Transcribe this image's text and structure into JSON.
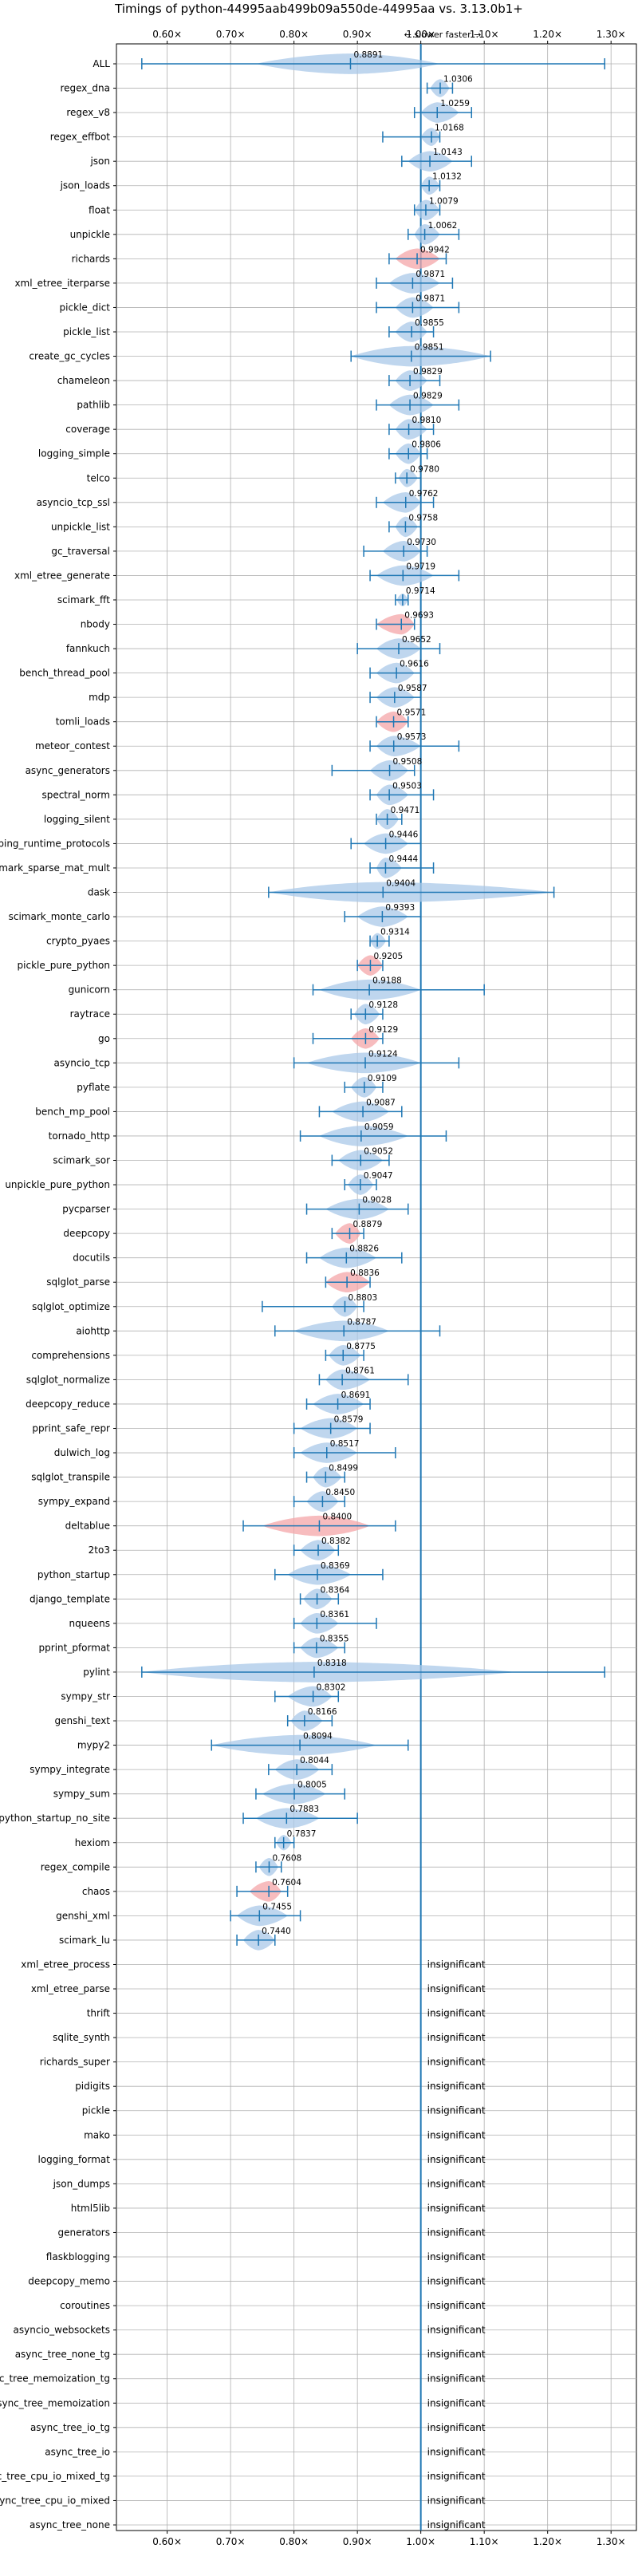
{
  "chart_data": {
    "type": "violin",
    "title": "Timings of python-44995aab499b09a550de-44995aa vs. 3.13.0b1+",
    "subtitle": "← slower     faster →",
    "xlim": [
      0.52,
      1.34
    ],
    "xticks": [
      0.6,
      0.7,
      0.8,
      0.9,
      1.0,
      1.1,
      1.2,
      1.3
    ],
    "xtick_labels": [
      "0.60×",
      "0.70×",
      "0.80×",
      "0.90×",
      "1.00×",
      "1.10×",
      "1.20×",
      "1.30×"
    ],
    "grid": true,
    "colors": {
      "faster": "#1f77b4",
      "faster_fill": "#a9c8e8",
      "slower_fill": "#f4a6a8",
      "axis": "#000000"
    },
    "insignificant_label": "insignificant",
    "benchmarks": [
      {
        "name": "ALL",
        "mean": 0.8891,
        "label": "0.8891",
        "lo": 0.56,
        "hi": 1.29,
        "vlo": 0.74,
        "vhi": 1.03,
        "slower": false
      },
      {
        "name": "regex_dna",
        "mean": 1.0306,
        "label": "1.0306",
        "lo": 1.01,
        "hi": 1.05,
        "vlo": 1.015,
        "vhi": 1.045,
        "slower": false
      },
      {
        "name": "regex_v8",
        "mean": 1.0259,
        "label": "1.0259",
        "lo": 0.99,
        "hi": 1.08,
        "vlo": 1.0,
        "vhi": 1.06,
        "slower": false
      },
      {
        "name": "regex_effbot",
        "mean": 1.0168,
        "label": "1.0168",
        "lo": 0.94,
        "hi": 1.03,
        "vlo": 1.0,
        "vhi": 1.03,
        "slower": false
      },
      {
        "name": "json",
        "mean": 1.0143,
        "label": "1.0143",
        "lo": 0.97,
        "hi": 1.08,
        "vlo": 0.98,
        "vhi": 1.05,
        "slower": false
      },
      {
        "name": "json_loads",
        "mean": 1.0132,
        "label": "1.0132",
        "lo": 1.0,
        "hi": 1.03,
        "vlo": 1.0,
        "vhi": 1.03,
        "slower": false
      },
      {
        "name": "float",
        "mean": 1.0079,
        "label": "1.0079",
        "lo": 0.99,
        "hi": 1.03,
        "vlo": 0.99,
        "vhi": 1.03,
        "slower": false
      },
      {
        "name": "unpickle",
        "mean": 1.0062,
        "label": "1.0062",
        "lo": 0.98,
        "hi": 1.06,
        "vlo": 0.99,
        "vhi": 1.03,
        "slower": false
      },
      {
        "name": "richards",
        "mean": 0.9942,
        "label": "0.9942",
        "lo": 0.95,
        "hi": 1.04,
        "vlo": 0.96,
        "vhi": 1.03,
        "slower": true
      },
      {
        "name": "xml_etree_iterparse",
        "mean": 0.9871,
        "label": "0.9871",
        "lo": 0.93,
        "hi": 1.05,
        "vlo": 0.95,
        "vhi": 1.03,
        "slower": false
      },
      {
        "name": "pickle_dict",
        "mean": 0.9871,
        "label": "0.9871",
        "lo": 0.93,
        "hi": 1.06,
        "vlo": 0.96,
        "vhi": 1.02,
        "slower": false
      },
      {
        "name": "pickle_list",
        "mean": 0.9855,
        "label": "0.9855",
        "lo": 0.95,
        "hi": 1.02,
        "vlo": 0.96,
        "vhi": 1.01,
        "slower": false
      },
      {
        "name": "create_gc_cycles",
        "mean": 0.9851,
        "label": "0.9851",
        "lo": 0.89,
        "hi": 1.11,
        "vlo": 0.89,
        "vhi": 1.11,
        "slower": false
      },
      {
        "name": "chameleon",
        "mean": 0.9829,
        "label": "0.9829",
        "lo": 0.95,
        "hi": 1.03,
        "vlo": 0.96,
        "vhi": 1.01,
        "slower": false
      },
      {
        "name": "pathlib",
        "mean": 0.9829,
        "label": "0.9829",
        "lo": 0.93,
        "hi": 1.06,
        "vlo": 0.95,
        "vhi": 1.02,
        "slower": false
      },
      {
        "name": "coverage",
        "mean": 0.981,
        "label": "0.9810",
        "lo": 0.95,
        "hi": 1.02,
        "vlo": 0.96,
        "vhi": 1.01,
        "slower": false
      },
      {
        "name": "logging_simple",
        "mean": 0.9806,
        "label": "0.9806",
        "lo": 0.95,
        "hi": 1.01,
        "vlo": 0.96,
        "vhi": 1.0,
        "slower": false
      },
      {
        "name": "telco",
        "mean": 0.978,
        "label": "0.9780",
        "lo": 0.96,
        "hi": 1.0,
        "vlo": 0.965,
        "vhi": 0.995,
        "slower": false
      },
      {
        "name": "asyncio_tcp_ssl",
        "mean": 0.9762,
        "label": "0.9762",
        "lo": 0.93,
        "hi": 1.02,
        "vlo": 0.94,
        "vhi": 1.0,
        "slower": false
      },
      {
        "name": "unpickle_list",
        "mean": 0.9758,
        "label": "0.9758",
        "lo": 0.95,
        "hi": 1.0,
        "vlo": 0.96,
        "vhi": 0.995,
        "slower": false
      },
      {
        "name": "gc_traversal",
        "mean": 0.973,
        "label": "0.9730",
        "lo": 0.91,
        "hi": 1.01,
        "vlo": 0.94,
        "vhi": 1.0,
        "slower": false
      },
      {
        "name": "xml_etree_generate",
        "mean": 0.9719,
        "label": "0.9719",
        "lo": 0.92,
        "hi": 1.06,
        "vlo": 0.93,
        "vhi": 1.02,
        "slower": false
      },
      {
        "name": "scimark_fft",
        "mean": 0.9714,
        "label": "0.9714",
        "lo": 0.96,
        "hi": 0.98,
        "vlo": 0.962,
        "vhi": 0.98,
        "slower": false
      },
      {
        "name": "nbody",
        "mean": 0.9693,
        "label": "0.9693",
        "lo": 0.93,
        "hi": 0.99,
        "vlo": 0.93,
        "vhi": 0.99,
        "slower": true
      },
      {
        "name": "fannkuch",
        "mean": 0.9652,
        "label": "0.9652",
        "lo": 0.9,
        "hi": 1.03,
        "vlo": 0.93,
        "vhi": 1.0,
        "slower": false
      },
      {
        "name": "bench_thread_pool",
        "mean": 0.9616,
        "label": "0.9616",
        "lo": 0.92,
        "hi": 1.0,
        "vlo": 0.93,
        "vhi": 0.99,
        "slower": false
      },
      {
        "name": "mdp",
        "mean": 0.9587,
        "label": "0.9587",
        "lo": 0.92,
        "hi": 1.0,
        "vlo": 0.93,
        "vhi": 0.99,
        "slower": false
      },
      {
        "name": "tomli_loads",
        "mean": 0.9571,
        "label": "0.9571",
        "lo": 0.93,
        "hi": 0.98,
        "vlo": 0.93,
        "vhi": 0.98,
        "slower": true
      },
      {
        "name": "meteor_contest",
        "mean": 0.9573,
        "label": "0.9573",
        "lo": 0.92,
        "hi": 1.06,
        "vlo": 0.93,
        "vhi": 1.0,
        "slower": false
      },
      {
        "name": "async_generators",
        "mean": 0.9508,
        "label": "0.9508",
        "lo": 0.86,
        "hi": 0.99,
        "vlo": 0.92,
        "vhi": 0.98,
        "slower": false
      },
      {
        "name": "spectral_norm",
        "mean": 0.9503,
        "label": "0.9503",
        "lo": 0.92,
        "hi": 1.02,
        "vlo": 0.93,
        "vhi": 0.98,
        "slower": false
      },
      {
        "name": "logging_silent",
        "mean": 0.9471,
        "label": "0.9471",
        "lo": 0.93,
        "hi": 0.97,
        "vlo": 0.93,
        "vhi": 0.965,
        "slower": false
      },
      {
        "name": "typing_runtime_protocols",
        "mean": 0.9446,
        "label": "0.9446",
        "lo": 0.89,
        "hi": 1.0,
        "vlo": 0.91,
        "vhi": 0.98,
        "slower": false
      },
      {
        "name": "scimark_sparse_mat_mult",
        "mean": 0.9444,
        "label": "0.9444",
        "lo": 0.92,
        "hi": 1.02,
        "vlo": 0.93,
        "vhi": 0.97,
        "slower": false
      },
      {
        "name": "dask",
        "mean": 0.9404,
        "label": "0.9404",
        "lo": 0.76,
        "hi": 1.21,
        "vlo": 0.76,
        "vhi": 1.21,
        "slower": false
      },
      {
        "name": "scimark_monte_carlo",
        "mean": 0.9393,
        "label": "0.9393",
        "lo": 0.88,
        "hi": 1.0,
        "vlo": 0.9,
        "vhi": 0.98,
        "slower": false
      },
      {
        "name": "crypto_pyaes",
        "mean": 0.9314,
        "label": "0.9314",
        "lo": 0.92,
        "hi": 0.95,
        "vlo": 0.92,
        "vhi": 0.945,
        "slower": false
      },
      {
        "name": "pickle_pure_python",
        "mean": 0.9205,
        "label": "0.9205",
        "lo": 0.9,
        "hi": 0.94,
        "vlo": 0.9,
        "vhi": 0.94,
        "slower": true
      },
      {
        "name": "gunicorn",
        "mean": 0.9188,
        "label": "0.9188",
        "lo": 0.83,
        "hi": 1.1,
        "vlo": 0.84,
        "vhi": 1.0,
        "slower": false
      },
      {
        "name": "raytrace",
        "mean": 0.9128,
        "label": "0.9128",
        "lo": 0.89,
        "hi": 0.94,
        "vlo": 0.895,
        "vhi": 0.935,
        "slower": false
      },
      {
        "name": "go",
        "mean": 0.9129,
        "label": "0.9129",
        "lo": 0.83,
        "hi": 0.94,
        "vlo": 0.89,
        "vhi": 0.935,
        "slower": true
      },
      {
        "name": "asyncio_tcp",
        "mean": 0.9124,
        "label": "0.9124",
        "lo": 0.8,
        "hi": 1.06,
        "vlo": 0.82,
        "vhi": 1.0,
        "slower": false
      },
      {
        "name": "pyflate",
        "mean": 0.9109,
        "label": "0.9109",
        "lo": 0.88,
        "hi": 0.94,
        "vlo": 0.89,
        "vhi": 0.93,
        "slower": false
      },
      {
        "name": "bench_mp_pool",
        "mean": 0.9087,
        "label": "0.9087",
        "lo": 0.84,
        "hi": 0.97,
        "vlo": 0.86,
        "vhi": 0.95,
        "slower": false
      },
      {
        "name": "tornado_http",
        "mean": 0.9059,
        "label": "0.9059",
        "lo": 0.81,
        "hi": 1.04,
        "vlo": 0.84,
        "vhi": 0.98,
        "slower": false
      },
      {
        "name": "scimark_sor",
        "mean": 0.9052,
        "label": "0.9052",
        "lo": 0.86,
        "hi": 0.95,
        "vlo": 0.87,
        "vhi": 0.94,
        "slower": false
      },
      {
        "name": "unpickle_pure_python",
        "mean": 0.9047,
        "label": "0.9047",
        "lo": 0.88,
        "hi": 0.93,
        "vlo": 0.885,
        "vhi": 0.925,
        "slower": false
      },
      {
        "name": "pycparser",
        "mean": 0.9028,
        "label": "0.9028",
        "lo": 0.82,
        "hi": 0.98,
        "vlo": 0.85,
        "vhi": 0.95,
        "slower": false
      },
      {
        "name": "deepcopy",
        "mean": 0.8879,
        "label": "0.8879",
        "lo": 0.86,
        "hi": 0.91,
        "vlo": 0.865,
        "vhi": 0.905,
        "slower": true
      },
      {
        "name": "docutils",
        "mean": 0.8826,
        "label": "0.8826",
        "lo": 0.82,
        "hi": 0.97,
        "vlo": 0.84,
        "vhi": 0.93,
        "slower": false
      },
      {
        "name": "sqlglot_parse",
        "mean": 0.8836,
        "label": "0.8836",
        "lo": 0.85,
        "hi": 0.92,
        "vlo": 0.85,
        "vhi": 0.92,
        "slower": true
      },
      {
        "name": "sqlglot_optimize",
        "mean": 0.8803,
        "label": "0.8803",
        "lo": 0.75,
        "hi": 0.91,
        "vlo": 0.86,
        "vhi": 0.9,
        "slower": false
      },
      {
        "name": "aiohttp",
        "mean": 0.8787,
        "label": "0.8787",
        "lo": 0.77,
        "hi": 1.03,
        "vlo": 0.8,
        "vhi": 0.95,
        "slower": false
      },
      {
        "name": "comprehensions",
        "mean": 0.8775,
        "label": "0.8775",
        "lo": 0.85,
        "hi": 0.91,
        "vlo": 0.855,
        "vhi": 0.905,
        "slower": false
      },
      {
        "name": "sqlglot_normalize",
        "mean": 0.8761,
        "label": "0.8761",
        "lo": 0.84,
        "hi": 0.98,
        "vlo": 0.85,
        "vhi": 0.92,
        "slower": false
      },
      {
        "name": "deepcopy_reduce",
        "mean": 0.8691,
        "label": "0.8691",
        "lo": 0.82,
        "hi": 0.92,
        "vlo": 0.83,
        "vhi": 0.91,
        "slower": false
      },
      {
        "name": "pprint_safe_repr",
        "mean": 0.8579,
        "label": "0.8579",
        "lo": 0.8,
        "hi": 0.92,
        "vlo": 0.81,
        "vhi": 0.9,
        "slower": false
      },
      {
        "name": "dulwich_log",
        "mean": 0.8517,
        "label": "0.8517",
        "lo": 0.8,
        "hi": 0.96,
        "vlo": 0.81,
        "vhi": 0.9,
        "slower": false
      },
      {
        "name": "sqlglot_transpile",
        "mean": 0.8499,
        "label": "0.8499",
        "lo": 0.82,
        "hi": 0.88,
        "vlo": 0.83,
        "vhi": 0.875,
        "slower": false
      },
      {
        "name": "sympy_expand",
        "mean": 0.845,
        "label": "0.8450",
        "lo": 0.8,
        "hi": 0.88,
        "vlo": 0.82,
        "vhi": 0.87,
        "slower": false
      },
      {
        "name": "deltablue",
        "mean": 0.84,
        "label": "0.8400",
        "lo": 0.72,
        "hi": 0.96,
        "vlo": 0.75,
        "vhi": 0.92,
        "slower": true
      },
      {
        "name": "2to3",
        "mean": 0.8382,
        "label": "0.8382",
        "lo": 0.8,
        "hi": 0.87,
        "vlo": 0.81,
        "vhi": 0.865,
        "slower": false
      },
      {
        "name": "python_startup",
        "mean": 0.8369,
        "label": "0.8369",
        "lo": 0.77,
        "hi": 0.94,
        "vlo": 0.79,
        "vhi": 0.89,
        "slower": false
      },
      {
        "name": "django_template",
        "mean": 0.8364,
        "label": "0.8364",
        "lo": 0.81,
        "hi": 0.87,
        "vlo": 0.815,
        "vhi": 0.86,
        "slower": false
      },
      {
        "name": "nqueens",
        "mean": 0.8361,
        "label": "0.8361",
        "lo": 0.8,
        "hi": 0.93,
        "vlo": 0.81,
        "vhi": 0.87,
        "slower": false
      },
      {
        "name": "pprint_pformat",
        "mean": 0.8355,
        "label": "0.8355",
        "lo": 0.8,
        "hi": 0.88,
        "vlo": 0.81,
        "vhi": 0.87,
        "slower": false
      },
      {
        "name": "pylint",
        "mean": 0.8318,
        "label": "0.8318",
        "lo": 0.56,
        "hi": 1.29,
        "vlo": 0.56,
        "vhi": 1.15,
        "slower": false
      },
      {
        "name": "sympy_str",
        "mean": 0.8302,
        "label": "0.8302",
        "lo": 0.77,
        "hi": 0.87,
        "vlo": 0.79,
        "vhi": 0.86,
        "slower": false
      },
      {
        "name": "genshi_text",
        "mean": 0.8166,
        "label": "0.8166",
        "lo": 0.79,
        "hi": 0.86,
        "vlo": 0.795,
        "vhi": 0.845,
        "slower": false
      },
      {
        "name": "mypy2",
        "mean": 0.8094,
        "label": "0.8094",
        "lo": 0.67,
        "hi": 0.98,
        "vlo": 0.67,
        "vhi": 0.93,
        "slower": false
      },
      {
        "name": "sympy_integrate",
        "mean": 0.8044,
        "label": "0.8044",
        "lo": 0.76,
        "hi": 0.86,
        "vlo": 0.77,
        "vhi": 0.84,
        "slower": false
      },
      {
        "name": "sympy_sum",
        "mean": 0.8005,
        "label": "0.8005",
        "lo": 0.74,
        "hi": 0.88,
        "vlo": 0.75,
        "vhi": 0.85,
        "slower": false
      },
      {
        "name": "python_startup_no_site",
        "mean": 0.7883,
        "label": "0.7883",
        "lo": 0.72,
        "hi": 0.9,
        "vlo": 0.74,
        "vhi": 0.84,
        "slower": false
      },
      {
        "name": "hexiom",
        "mean": 0.7837,
        "label": "0.7837",
        "lo": 0.77,
        "hi": 0.8,
        "vlo": 0.772,
        "vhi": 0.796,
        "slower": false
      },
      {
        "name": "regex_compile",
        "mean": 0.7608,
        "label": "0.7608",
        "lo": 0.74,
        "hi": 0.78,
        "vlo": 0.745,
        "vhi": 0.775,
        "slower": false
      },
      {
        "name": "chaos",
        "mean": 0.7604,
        "label": "0.7604",
        "lo": 0.71,
        "hi": 0.79,
        "vlo": 0.73,
        "vhi": 0.78,
        "slower": true
      },
      {
        "name": "genshi_xml",
        "mean": 0.7455,
        "label": "0.7455",
        "lo": 0.7,
        "hi": 0.81,
        "vlo": 0.71,
        "vhi": 0.79,
        "slower": false
      },
      {
        "name": "scimark_lu",
        "mean": 0.744,
        "label": "0.7440",
        "lo": 0.71,
        "hi": 0.77,
        "vlo": 0.72,
        "vhi": 0.77,
        "slower": false
      },
      {
        "name": "xml_etree_process",
        "insignificant": true
      },
      {
        "name": "xml_etree_parse",
        "insignificant": true
      },
      {
        "name": "thrift",
        "insignificant": true
      },
      {
        "name": "sqlite_synth",
        "insignificant": true
      },
      {
        "name": "richards_super",
        "insignificant": true
      },
      {
        "name": "pidigits",
        "insignificant": true
      },
      {
        "name": "pickle",
        "insignificant": true
      },
      {
        "name": "mako",
        "insignificant": true
      },
      {
        "name": "logging_format",
        "insignificant": true
      },
      {
        "name": "json_dumps",
        "insignificant": true
      },
      {
        "name": "html5lib",
        "insignificant": true
      },
      {
        "name": "generators",
        "insignificant": true
      },
      {
        "name": "flaskblogging",
        "insignificant": true
      },
      {
        "name": "deepcopy_memo",
        "insignificant": true
      },
      {
        "name": "coroutines",
        "insignificant": true
      },
      {
        "name": "asyncio_websockets",
        "insignificant": true
      },
      {
        "name": "async_tree_none_tg",
        "insignificant": true
      },
      {
        "name": "async_tree_memoization_tg",
        "insignificant": true
      },
      {
        "name": "async_tree_memoization",
        "insignificant": true
      },
      {
        "name": "async_tree_io_tg",
        "insignificant": true
      },
      {
        "name": "async_tree_io",
        "insignificant": true
      },
      {
        "name": "async_tree_cpu_io_mixed_tg",
        "insignificant": true
      },
      {
        "name": "async_tree_cpu_io_mixed",
        "insignificant": true
      },
      {
        "name": "async_tree_none",
        "insignificant": true
      }
    ]
  }
}
